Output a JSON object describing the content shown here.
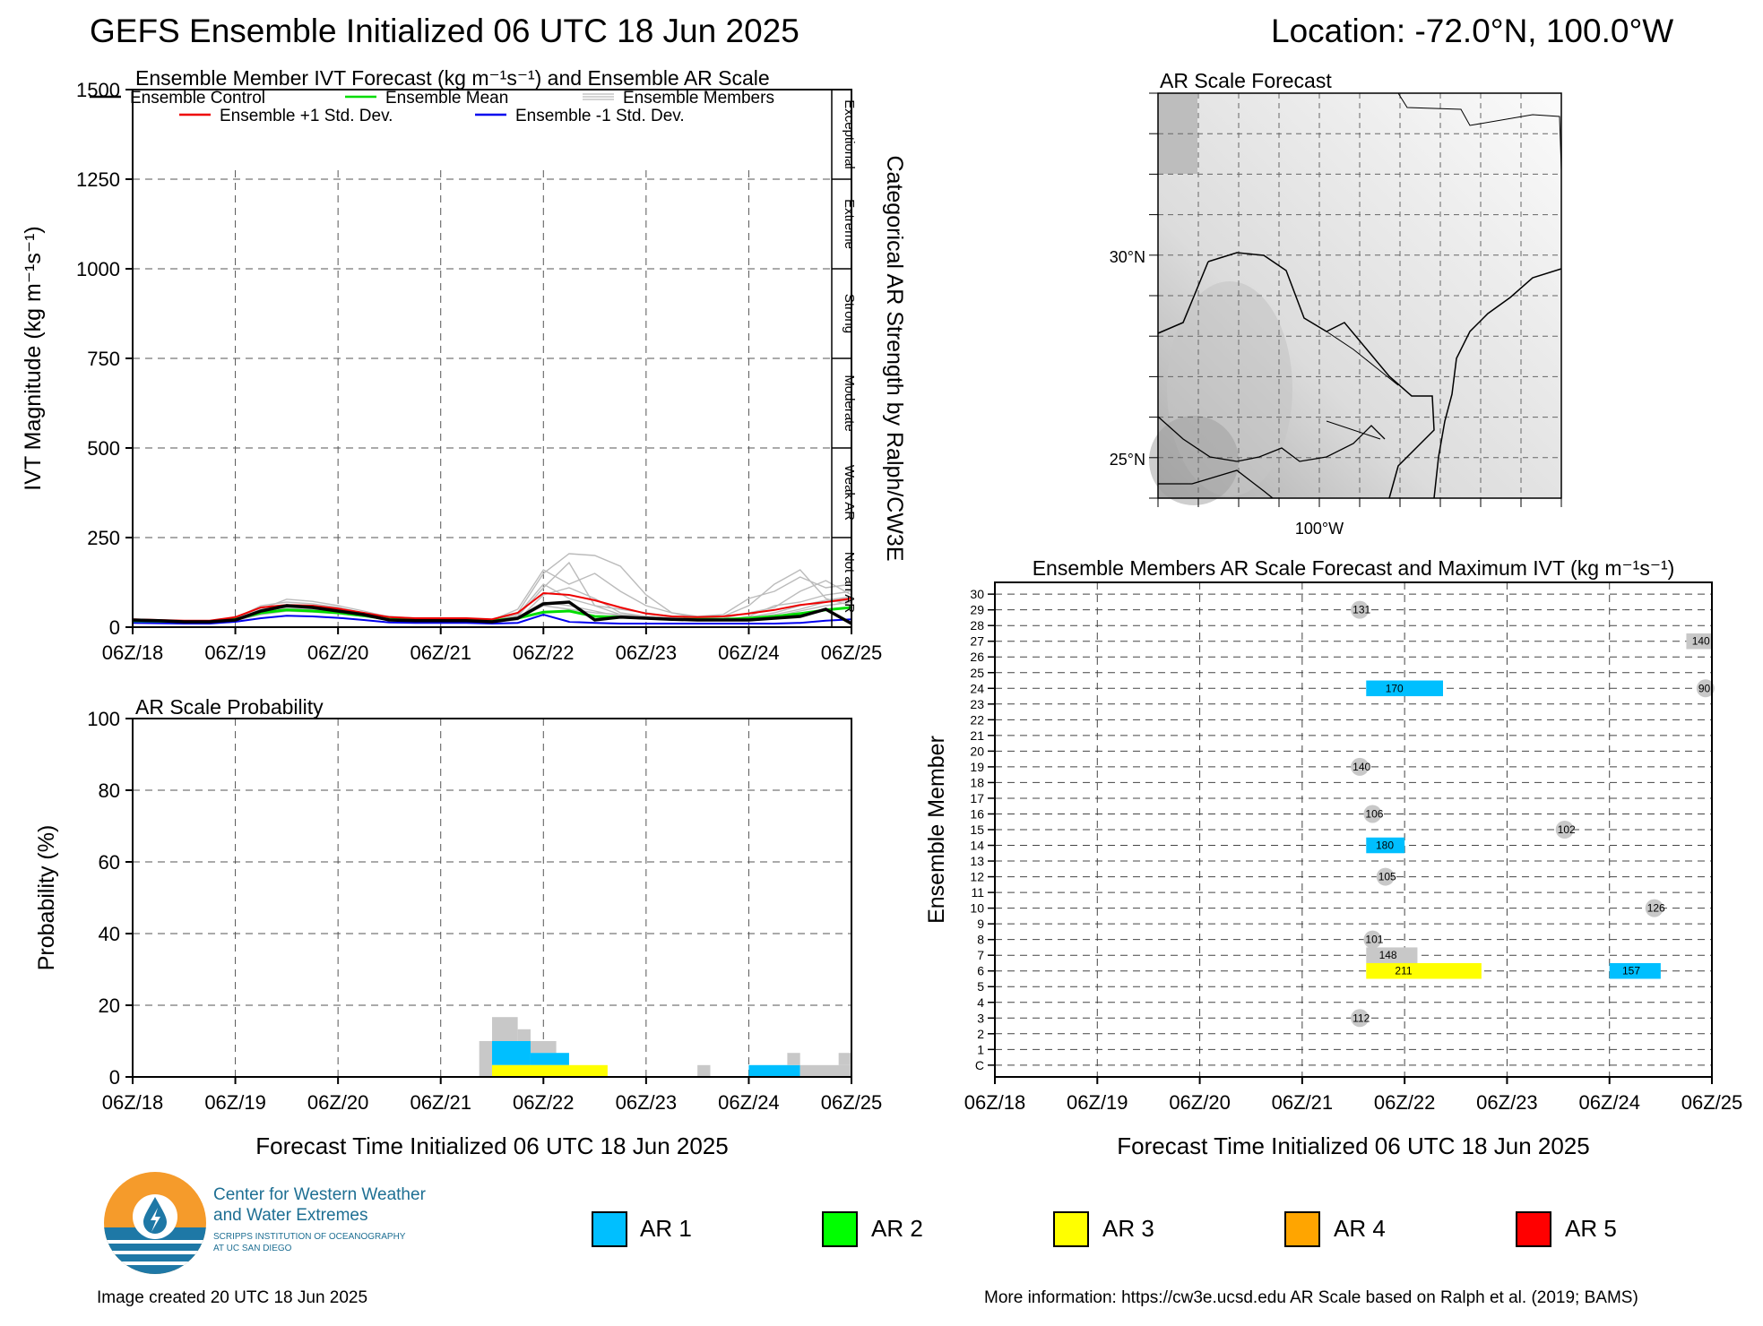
{
  "header": {
    "title": "GEFS Ensemble Initialized 06 UTC 18 Jun 2025",
    "location": "Location: -72.0°N, 100.0°W"
  },
  "time_ticks": [
    "06Z/18",
    "06Z/19",
    "06Z/20",
    "06Z/21",
    "06Z/22",
    "06Z/23",
    "06Z/24",
    "06Z/25"
  ],
  "colors": {
    "ar1": "#00bfff",
    "ar2": "#00ff00",
    "ar3": "#ffff00",
    "ar4": "#ffa500",
    "ar5": "#ff0000",
    "members": "#bbbbbb",
    "control": "#000000",
    "mean": "#00dd00",
    "plus_std": "#ee0000",
    "minus_std": "#0000ee",
    "nonar": "#c8c8c8"
  },
  "chart_data": [
    {
      "id": "ivt",
      "type": "line",
      "title": "Ensemble Member IVT Forecast (kg m⁻¹s⁻¹) and Ensemble AR Scale",
      "ylabel": "IVT Magnitude (kg m⁻¹s⁻¹)",
      "right_label": "Categorical AR Strength by Ralph/CW3E",
      "xlim": [
        0,
        168
      ],
      "ylim": [
        0,
        1500
      ],
      "yticks": [
        0,
        250,
        500,
        750,
        1000,
        1250,
        1500
      ],
      "grid": true,
      "legend_position": "top",
      "categories": [
        {
          "label": "Not an AR",
          "range": [
            0,
            250
          ]
        },
        {
          "label": "Weak AR",
          "range": [
            250,
            500
          ]
        },
        {
          "label": "Moderate",
          "range": [
            500,
            750
          ]
        },
        {
          "label": "Strong",
          "range": [
            750,
            1000
          ]
        },
        {
          "label": "Extreme",
          "range": [
            1000,
            1250
          ]
        },
        {
          "label": "Exceptional",
          "range": [
            1250,
            1500
          ]
        }
      ],
      "legend": [
        {
          "label": "Ensemble Control",
          "color_key": "control"
        },
        {
          "label": "Ensemble Mean",
          "color_key": "mean"
        },
        {
          "label": "Ensemble Members",
          "color_key": "members"
        },
        {
          "label": "Ensemble +1 Std. Dev.",
          "color_key": "plus_std"
        },
        {
          "label": "Ensemble -1 Std. Dev.",
          "color_key": "minus_std"
        }
      ],
      "x": [
        0,
        6,
        12,
        18,
        24,
        30,
        36,
        42,
        48,
        54,
        60,
        66,
        72,
        78,
        84,
        90,
        96,
        102,
        108,
        114,
        120,
        126,
        132,
        138,
        144,
        150,
        156,
        162,
        168
      ],
      "series": [
        {
          "name": "Ensemble Control",
          "color_key": "control",
          "width": 3.5,
          "values": [
            20,
            18,
            15,
            15,
            20,
            45,
            60,
            55,
            45,
            35,
            20,
            18,
            18,
            18,
            15,
            25,
            65,
            70,
            20,
            28,
            25,
            22,
            20,
            20,
            20,
            25,
            30,
            50,
            10
          ]
        },
        {
          "name": "Ensemble Mean",
          "color_key": "mean",
          "width": 3,
          "values": [
            18,
            17,
            15,
            15,
            22,
            40,
            48,
            45,
            40,
            32,
            22,
            20,
            20,
            20,
            18,
            25,
            42,
            45,
            30,
            28,
            25,
            22,
            22,
            22,
            25,
            30,
            38,
            48,
            55
          ]
        },
        {
          "name": "Ensemble +1 Std. Dev.",
          "color_key": "plus_std",
          "width": 2,
          "values": [
            22,
            20,
            18,
            18,
            28,
            55,
            62,
            60,
            52,
            40,
            28,
            25,
            25,
            25,
            22,
            40,
            95,
            90,
            75,
            55,
            38,
            30,
            28,
            30,
            38,
            48,
            62,
            70,
            80
          ]
        },
        {
          "name": "Ensemble -1 Std. Dev.",
          "color_key": "minus_std",
          "width": 2,
          "values": [
            12,
            11,
            10,
            10,
            15,
            25,
            32,
            30,
            26,
            20,
            13,
            12,
            12,
            12,
            10,
            12,
            35,
            15,
            12,
            10,
            10,
            10,
            10,
            10,
            10,
            10,
            12,
            18,
            22
          ]
        }
      ],
      "members": [
        [
          15,
          14,
          12,
          14,
          25,
          50,
          60,
          58,
          50,
          40,
          25,
          22,
          22,
          20,
          18,
          30,
          110,
          180,
          60,
          35,
          25,
          20,
          20,
          20,
          25,
          30,
          45,
          60,
          70
        ],
        [
          18,
          16,
          14,
          15,
          20,
          45,
          55,
          50,
          45,
          35,
          22,
          20,
          20,
          20,
          18,
          40,
          150,
          205,
          200,
          170,
          90,
          40,
          25,
          30,
          60,
          120,
          160,
          80,
          60
        ],
        [
          20,
          18,
          15,
          15,
          25,
          60,
          70,
          65,
          55,
          40,
          30,
          25,
          25,
          25,
          20,
          50,
          160,
          120,
          150,
          100,
          60,
          40,
          30,
          35,
          80,
          100,
          140,
          110,
          120
        ],
        [
          14,
          12,
          10,
          12,
          18,
          35,
          45,
          42,
          38,
          30,
          20,
          18,
          18,
          18,
          15,
          20,
          90,
          110,
          80,
          40,
          30,
          25,
          20,
          20,
          30,
          60,
          70,
          90,
          100
        ],
        [
          16,
          14,
          12,
          14,
          20,
          40,
          52,
          48,
          42,
          34,
          24,
          20,
          20,
          20,
          18,
          35,
          120,
          80,
          60,
          50,
          40,
          30,
          25,
          25,
          40,
          55,
          100,
          130,
          90
        ],
        [
          12,
          11,
          10,
          12,
          18,
          50,
          78,
          72,
          60,
          45,
          28,
          24,
          22,
          22,
          20,
          28,
          70,
          60,
          45,
          30,
          24,
          20,
          18,
          20,
          25,
          35,
          50,
          70,
          75
        ],
        [
          20,
          18,
          16,
          16,
          22,
          38,
          46,
          44,
          40,
          32,
          22,
          20,
          20,
          20,
          18,
          22,
          60,
          50,
          40,
          35,
          30,
          26,
          22,
          22,
          28,
          40,
          60,
          75,
          85
        ]
      ],
      "hint_annotation": ""
    },
    {
      "id": "prob",
      "type": "bar",
      "title": "AR Scale Probability",
      "ylabel": "Probability (%)",
      "xlabel": "Forecast Time Initialized 06 UTC 18 Jun 2025",
      "xlim": [
        0,
        168
      ],
      "ylim": [
        0,
        100
      ],
      "yticks": [
        0,
        20,
        40,
        60,
        80,
        100
      ],
      "grid": true,
      "bars": [
        {
          "x0": 81,
          "x1": 84,
          "bottom": 0,
          "top": 10,
          "color_key": "nonar"
        },
        {
          "x0": 84,
          "x1": 90,
          "bottom": 10,
          "top": 16.7,
          "color_key": "nonar"
        },
        {
          "x0": 90,
          "x1": 93,
          "bottom": 10,
          "top": 13.3,
          "color_key": "nonar"
        },
        {
          "x0": 93,
          "x1": 99,
          "bottom": 6.7,
          "top": 10,
          "color_key": "nonar"
        },
        {
          "x0": 84,
          "x1": 93,
          "bottom": 3.3,
          "top": 10,
          "color_key": "ar1"
        },
        {
          "x0": 93,
          "x1": 102,
          "bottom": 3.3,
          "top": 6.7,
          "color_key": "ar1"
        },
        {
          "x0": 84,
          "x1": 111,
          "bottom": 0,
          "top": 3.3,
          "color_key": "ar3"
        },
        {
          "x0": 132,
          "x1": 135,
          "bottom": 0,
          "top": 3.3,
          "color_key": "nonar"
        },
        {
          "x0": 144,
          "x1": 156,
          "bottom": 0,
          "top": 3.3,
          "color_key": "ar1"
        },
        {
          "x0": 153,
          "x1": 156,
          "bottom": 3.3,
          "top": 6.7,
          "color_key": "nonar"
        },
        {
          "x0": 156,
          "x1": 168,
          "bottom": 0,
          "top": 3.3,
          "color_key": "nonar"
        },
        {
          "x0": 165,
          "x1": 168,
          "bottom": 3.3,
          "top": 6.7,
          "color_key": "nonar"
        }
      ]
    },
    {
      "id": "members",
      "type": "heatmap",
      "title": "Ensemble Members AR Scale Forecast and Maximum IVT (kg m⁻¹s⁻¹)",
      "ylabel": "Ensemble Member",
      "xlabel": "Forecast Time Initialized 06 UTC 18 Jun 2025",
      "xlim": [
        0,
        168
      ],
      "rows": [
        "C",
        "1",
        "2",
        "3",
        "4",
        "5",
        "6",
        "7",
        "8",
        "9",
        "10",
        "11",
        "12",
        "13",
        "14",
        "15",
        "16",
        "17",
        "18",
        "19",
        "20",
        "21",
        "22",
        "23",
        "24",
        "25",
        "26",
        "27",
        "28",
        "29",
        "30"
      ],
      "grid": true,
      "events": [
        {
          "member": "29",
          "x0": 84,
          "x1": 87,
          "color_key": "nonar",
          "value": "131"
        },
        {
          "member": "27",
          "x0": 162,
          "x1": 168,
          "color_key": "nonar",
          "value": "140"
        },
        {
          "member": "24",
          "x0": 87,
          "x1": 105,
          "color_key": "ar1",
          "value": "170"
        },
        {
          "member": "24",
          "x0": 165,
          "x1": 168,
          "color_key": "nonar",
          "value": "90"
        },
        {
          "member": "19",
          "x0": 84,
          "x1": 87,
          "color_key": "nonar",
          "value": "140"
        },
        {
          "member": "16",
          "x0": 87,
          "x1": 90,
          "color_key": "nonar",
          "value": "106"
        },
        {
          "member": "15",
          "x0": 132,
          "x1": 135,
          "color_key": "nonar",
          "value": "102"
        },
        {
          "member": "14",
          "x0": 87,
          "x1": 96,
          "color_key": "ar1",
          "value": "180"
        },
        {
          "member": "12",
          "x0": 90,
          "x1": 93,
          "color_key": "nonar",
          "value": "105"
        },
        {
          "member": "10",
          "x0": 153,
          "x1": 156,
          "color_key": "nonar",
          "value": "126"
        },
        {
          "member": "8",
          "x0": 87,
          "x1": 90,
          "color_key": "nonar",
          "value": "101"
        },
        {
          "member": "7",
          "x0": 87,
          "x1": 99,
          "color_key": "nonar",
          "value": "148"
        },
        {
          "member": "6",
          "x0": 87,
          "x1": 114,
          "color_key": "ar3",
          "value": "211"
        },
        {
          "member": "6",
          "x0": 144,
          "x1": 156,
          "color_key": "ar1",
          "value": "157"
        },
        {
          "member": "3",
          "x0": 84,
          "x1": 87,
          "color_key": "nonar",
          "value": "112"
        }
      ]
    }
  ],
  "map": {
    "title": "AR Scale Forecast",
    "lat_labels": [
      "30°N",
      "25°N"
    ],
    "lon_label": "100°W"
  },
  "legend_bottom": [
    {
      "label": "AR 1",
      "color_key": "ar1"
    },
    {
      "label": "AR 2",
      "color_key": "ar2"
    },
    {
      "label": "AR 3",
      "color_key": "ar3"
    },
    {
      "label": "AR 4",
      "color_key": "ar4"
    },
    {
      "label": "AR 5",
      "color_key": "ar5"
    }
  ],
  "logo": {
    "line1": "Center for Western Weather",
    "line2": "and Water Extremes",
    "line3": "SCRIPPS INSTITUTION OF OCEANOGRAPHY",
    "line4": "AT UC SAN DIEGO"
  },
  "footer": {
    "created": "Image created 20 UTC 18 Jun 2025",
    "info": "More information: https://cw3e.ucsd.edu AR Scale based on Ralph et al. (2019; BAMS)"
  }
}
